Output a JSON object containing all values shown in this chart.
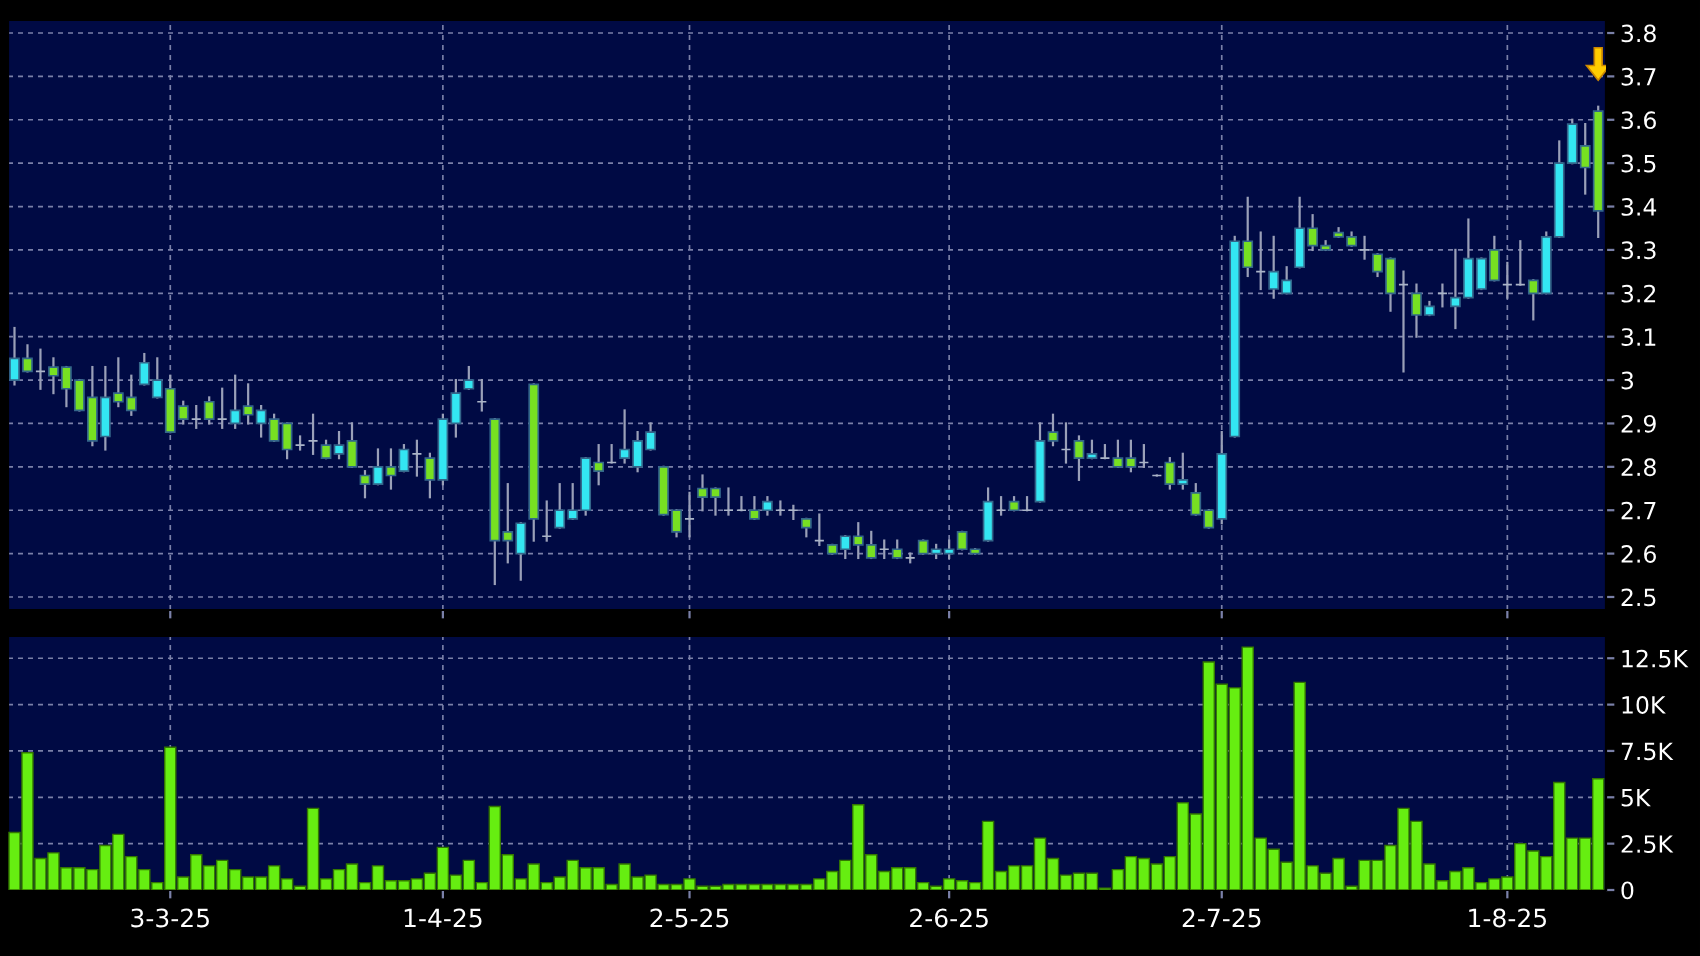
{
  "chart_data": [
    {
      "type": "candlestick",
      "ohlc": [
        [
          3.0,
          3.12,
          2.99,
          3.05
        ],
        [
          3.05,
          3.08,
          3.02,
          3.02
        ],
        [
          3.02,
          3.07,
          2.98,
          3.02
        ],
        [
          3.03,
          3.05,
          2.97,
          3.01
        ],
        [
          3.03,
          3.03,
          2.94,
          2.98
        ],
        [
          3.0,
          3.0,
          2.93,
          2.93
        ],
        [
          2.96,
          3.03,
          2.85,
          2.86
        ],
        [
          2.87,
          3.03,
          2.84,
          2.96
        ],
        [
          2.97,
          3.05,
          2.94,
          2.95
        ],
        [
          2.96,
          3.01,
          2.92,
          2.93
        ],
        [
          2.99,
          3.06,
          2.99,
          3.04
        ],
        [
          2.96,
          3.05,
          2.96,
          3.0
        ],
        [
          2.98,
          3.01,
          2.88,
          2.88
        ],
        [
          2.94,
          2.95,
          2.9,
          2.91
        ],
        [
          2.91,
          2.94,
          2.89,
          2.91
        ],
        [
          2.95,
          2.96,
          2.9,
          2.91
        ],
        [
          2.91,
          2.98,
          2.89,
          2.91
        ],
        [
          2.9,
          3.01,
          2.89,
          2.93
        ],
        [
          2.94,
          2.99,
          2.9,
          2.92
        ],
        [
          2.9,
          2.94,
          2.87,
          2.93
        ],
        [
          2.91,
          2.92,
          2.86,
          2.86
        ],
        [
          2.9,
          2.9,
          2.82,
          2.84
        ],
        [
          2.85,
          2.87,
          2.84,
          2.85
        ],
        [
          2.86,
          2.92,
          2.83,
          2.86
        ],
        [
          2.85,
          2.86,
          2.82,
          2.82
        ],
        [
          2.83,
          2.88,
          2.82,
          2.85
        ],
        [
          2.86,
          2.9,
          2.8,
          2.8
        ],
        [
          2.78,
          2.79,
          2.73,
          2.76
        ],
        [
          2.76,
          2.84,
          2.76,
          2.8
        ],
        [
          2.8,
          2.84,
          2.75,
          2.78
        ],
        [
          2.79,
          2.85,
          2.79,
          2.84
        ],
        [
          2.83,
          2.86,
          2.78,
          2.83
        ],
        [
          2.82,
          2.83,
          2.73,
          2.77
        ],
        [
          2.77,
          2.92,
          2.76,
          2.91
        ],
        [
          2.9,
          3.0,
          2.87,
          2.97
        ],
        [
          2.98,
          3.03,
          2.98,
          3.0
        ],
        [
          2.95,
          3.0,
          2.93,
          2.95
        ],
        [
          2.91,
          2.91,
          2.53,
          2.63
        ],
        [
          2.65,
          2.76,
          2.58,
          2.63
        ],
        [
          2.6,
          2.67,
          2.54,
          2.67
        ],
        [
          2.99,
          2.99,
          2.63,
          2.68
        ],
        [
          2.64,
          2.72,
          2.63,
          2.64
        ],
        [
          2.66,
          2.76,
          2.66,
          2.7
        ],
        [
          2.68,
          2.76,
          2.68,
          2.7
        ],
        [
          2.7,
          2.82,
          2.69,
          2.82
        ],
        [
          2.81,
          2.85,
          2.76,
          2.79
        ],
        [
          2.81,
          2.85,
          2.81,
          2.81
        ],
        [
          2.82,
          2.93,
          2.81,
          2.84
        ],
        [
          2.8,
          2.88,
          2.79,
          2.86
        ],
        [
          2.84,
          2.9,
          2.84,
          2.88
        ],
        [
          2.8,
          2.8,
          2.69,
          2.69
        ],
        [
          2.7,
          2.7,
          2.64,
          2.65
        ],
        [
          2.68,
          2.74,
          2.64,
          2.68
        ],
        [
          2.75,
          2.78,
          2.7,
          2.73
        ],
        [
          2.75,
          2.75,
          2.69,
          2.73
        ],
        [
          2.7,
          2.75,
          2.69,
          2.7
        ],
        [
          2.7,
          2.73,
          2.7,
          2.7
        ],
        [
          2.7,
          2.73,
          2.68,
          2.68
        ],
        [
          2.7,
          2.73,
          2.69,
          2.72
        ],
        [
          2.7,
          2.72,
          2.69,
          2.7
        ],
        [
          2.7,
          2.71,
          2.68,
          2.7
        ],
        [
          2.68,
          2.68,
          2.64,
          2.66
        ],
        [
          2.63,
          2.69,
          2.62,
          2.63
        ],
        [
          2.62,
          2.62,
          2.6,
          2.6
        ],
        [
          2.61,
          2.64,
          2.59,
          2.64
        ],
        [
          2.64,
          2.67,
          2.59,
          2.62
        ],
        [
          2.62,
          2.65,
          2.59,
          2.59
        ],
        [
          2.61,
          2.63,
          2.59,
          2.61
        ],
        [
          2.61,
          2.63,
          2.59,
          2.59
        ],
        [
          2.59,
          2.6,
          2.58,
          2.59
        ],
        [
          2.63,
          2.63,
          2.6,
          2.6
        ],
        [
          2.6,
          2.62,
          2.59,
          2.61
        ],
        [
          2.6,
          2.63,
          2.59,
          2.61
        ],
        [
          2.65,
          2.65,
          2.61,
          2.61
        ],
        [
          2.61,
          2.61,
          2.6,
          2.6
        ],
        [
          2.63,
          2.75,
          2.63,
          2.72
        ],
        [
          2.7,
          2.73,
          2.69,
          2.7
        ],
        [
          2.72,
          2.73,
          2.7,
          2.7
        ],
        [
          2.7,
          2.73,
          2.7,
          2.7
        ],
        [
          2.72,
          2.9,
          2.72,
          2.86
        ],
        [
          2.88,
          2.92,
          2.85,
          2.86
        ],
        [
          2.84,
          2.9,
          2.81,
          2.84
        ],
        [
          2.86,
          2.87,
          2.77,
          2.82
        ],
        [
          2.82,
          2.86,
          2.82,
          2.83
        ],
        [
          2.82,
          2.85,
          2.82,
          2.82
        ],
        [
          2.82,
          2.86,
          2.8,
          2.8
        ],
        [
          2.82,
          2.86,
          2.79,
          2.8
        ],
        [
          2.81,
          2.85,
          2.8,
          2.81
        ],
        [
          2.78,
          2.78,
          2.78,
          2.78
        ],
        [
          2.81,
          2.82,
          2.75,
          2.76
        ],
        [
          2.76,
          2.83,
          2.75,
          2.77
        ],
        [
          2.74,
          2.76,
          2.69,
          2.69
        ],
        [
          2.7,
          2.7,
          2.66,
          2.66
        ],
        [
          2.68,
          2.88,
          2.67,
          2.83
        ],
        [
          2.87,
          3.33,
          2.87,
          3.32
        ],
        [
          3.32,
          3.42,
          3.24,
          3.26
        ],
        [
          3.25,
          3.34,
          3.21,
          3.25
        ],
        [
          3.21,
          3.33,
          3.19,
          3.25
        ],
        [
          3.2,
          3.26,
          3.2,
          3.23
        ],
        [
          3.26,
          3.42,
          3.26,
          3.35
        ],
        [
          3.35,
          3.38,
          3.3,
          3.31
        ],
        [
          3.31,
          3.32,
          3.3,
          3.3
        ],
        [
          3.34,
          3.35,
          3.33,
          3.33
        ],
        [
          3.33,
          3.34,
          3.31,
          3.31
        ],
        [
          3.3,
          3.33,
          3.28,
          3.3
        ],
        [
          3.29,
          3.29,
          3.24,
          3.25
        ],
        [
          3.28,
          3.28,
          3.16,
          3.2
        ],
        [
          3.22,
          3.25,
          3.02,
          3.22
        ],
        [
          3.2,
          3.22,
          3.1,
          3.15
        ],
        [
          3.15,
          3.18,
          3.15,
          3.17
        ],
        [
          3.2,
          3.22,
          3.17,
          3.2
        ],
        [
          3.17,
          3.3,
          3.12,
          3.19
        ],
        [
          3.19,
          3.37,
          3.19,
          3.28
        ],
        [
          3.21,
          3.28,
          3.21,
          3.28
        ],
        [
          3.3,
          3.33,
          3.23,
          3.23
        ],
        [
          3.22,
          3.27,
          3.19,
          3.22
        ],
        [
          3.22,
          3.32,
          3.22,
          3.22
        ],
        [
          3.23,
          3.23,
          3.14,
          3.2
        ],
        [
          3.2,
          3.34,
          3.2,
          3.33
        ],
        [
          3.33,
          3.55,
          3.33,
          3.5
        ],
        [
          3.5,
          3.6,
          3.5,
          3.59
        ],
        [
          3.54,
          3.59,
          3.43,
          3.49
        ],
        [
          3.62,
          3.63,
          3.33,
          3.39
        ]
      ],
      "ylim": [
        2.47,
        3.83
      ],
      "yticks": [
        2.5,
        2.6,
        2.7,
        2.8,
        2.9,
        3,
        3.1,
        3.2,
        3.3,
        3.4,
        3.5,
        3.6,
        3.7,
        3.8
      ],
      "grid": true,
      "tick_labels": "y"
    },
    {
      "type": "bar",
      "categories": [
        null,
        null,
        null,
        null,
        null,
        null,
        null,
        null,
        null,
        null,
        null,
        null,
        "3-3-25",
        null,
        null,
        null,
        null,
        null,
        null,
        null,
        null,
        null,
        null,
        null,
        null,
        null,
        null,
        null,
        null,
        null,
        null,
        null,
        null,
        "1-4-25",
        null,
        null,
        null,
        null,
        null,
        null,
        null,
        null,
        null,
        null,
        null,
        null,
        null,
        null,
        null,
        null,
        null,
        null,
        "2-5-25",
        null,
        null,
        null,
        null,
        null,
        null,
        null,
        null,
        null,
        null,
        null,
        null,
        null,
        null,
        null,
        null,
        null,
        null,
        null,
        "2-6-25",
        null,
        null,
        null,
        null,
        null,
        null,
        null,
        null,
        null,
        null,
        null,
        null,
        null,
        null,
        null,
        null,
        null,
        null,
        null,
        null,
        "2-7-25",
        null,
        null,
        null,
        null,
        null,
        null,
        null,
        null,
        null,
        null,
        null,
        null,
        null,
        null,
        null,
        null,
        null,
        null,
        null,
        null,
        null,
        "1-8-25",
        null,
        null,
        null,
        null,
        null,
        null,
        null
      ],
      "values": [
        3100,
        7400,
        1700,
        2000,
        1200,
        1200,
        1100,
        2400,
        3000,
        1800,
        1100,
        400,
        7700,
        700,
        1900,
        1300,
        1600,
        1100,
        700,
        700,
        1300,
        600,
        200,
        4400,
        600,
        1100,
        1400,
        400,
        1300,
        500,
        500,
        600,
        900,
        2300,
        800,
        1600,
        400,
        4500,
        1900,
        600,
        1400,
        400,
        700,
        1600,
        1200,
        1200,
        300,
        1400,
        700,
        800,
        300,
        300,
        600,
        200,
        200,
        300,
        300,
        300,
        300,
        300,
        300,
        300,
        600,
        1000,
        1600,
        4600,
        1900,
        1000,
        1200,
        1200,
        400,
        200,
        600,
        500,
        400,
        3700,
        1000,
        1300,
        1300,
        2800,
        1700,
        800,
        900,
        900,
        100,
        1100,
        1800,
        1700,
        1400,
        1800,
        4700,
        4100,
        12300,
        11100,
        10900,
        13100,
        2800,
        2200,
        1500,
        11200,
        1300,
        900,
        1700,
        200,
        1600,
        1600,
        2400,
        4400,
        3700,
        1400,
        500,
        1000,
        1200,
        400,
        600,
        700,
        2500,
        2100,
        1800,
        5800,
        2800,
        2800,
        6000
      ],
      "color": "#66ee11",
      "ylim": [
        0,
        13700
      ],
      "yticks": [
        0,
        {
          "value": 2500,
          "label": "2.5K"
        },
        {
          "value": 5000,
          "label": "5K"
        },
        {
          "value": 7500,
          "label": "7.5K"
        },
        {
          "value": 10000,
          "label": "10K"
        },
        {
          "value": 12500,
          "label": "12.5K"
        }
      ],
      "grid": true
    }
  ]
}
